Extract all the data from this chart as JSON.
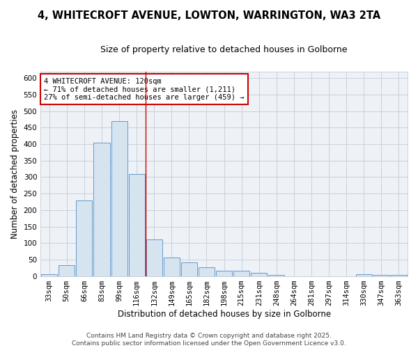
{
  "title1": "4, WHITECROFT AVENUE, LOWTON, WARRINGTON, WA3 2TA",
  "title2": "Size of property relative to detached houses in Golborne",
  "xlabel": "Distribution of detached houses by size in Golborne",
  "ylabel": "Number of detached properties",
  "bar_color": "#d6e4f0",
  "bar_edge_color": "#6699cc",
  "categories": [
    "33sqm",
    "50sqm",
    "66sqm",
    "83sqm",
    "99sqm",
    "116sqm",
    "132sqm",
    "149sqm",
    "165sqm",
    "182sqm",
    "198sqm",
    "215sqm",
    "231sqm",
    "248sqm",
    "264sqm",
    "281sqm",
    "297sqm",
    "314sqm",
    "330sqm",
    "347sqm",
    "363sqm"
  ],
  "values": [
    5,
    32,
    230,
    405,
    470,
    310,
    110,
    56,
    42,
    27,
    15,
    15,
    10,
    4,
    0,
    0,
    0,
    0,
    5,
    4,
    4
  ],
  "ylim": [
    0,
    620
  ],
  "yticks": [
    0,
    50,
    100,
    150,
    200,
    250,
    300,
    350,
    400,
    450,
    500,
    550,
    600
  ],
  "vline_x": 5.5,
  "vline_color": "#cc0000",
  "annotation_text": "4 WHITECROFT AVENUE: 120sqm\n← 71% of detached houses are smaller (1,211)\n27% of semi-detached houses are larger (459) →",
  "annotation_box_facecolor": "#ffffff",
  "annotation_box_edgecolor": "#cc0000",
  "footer": "Contains HM Land Registry data © Crown copyright and database right 2025.\nContains public sector information licensed under the Open Government Licence v3.0.",
  "bg_color": "#ffffff",
  "plot_bg_color": "#eef2f7",
  "grid_color": "#c8d0dc",
  "title_fontsize": 10.5,
  "subtitle_fontsize": 9,
  "axis_label_fontsize": 8.5,
  "tick_fontsize": 7.5,
  "annotation_fontsize": 7.5,
  "footer_fontsize": 6.5
}
